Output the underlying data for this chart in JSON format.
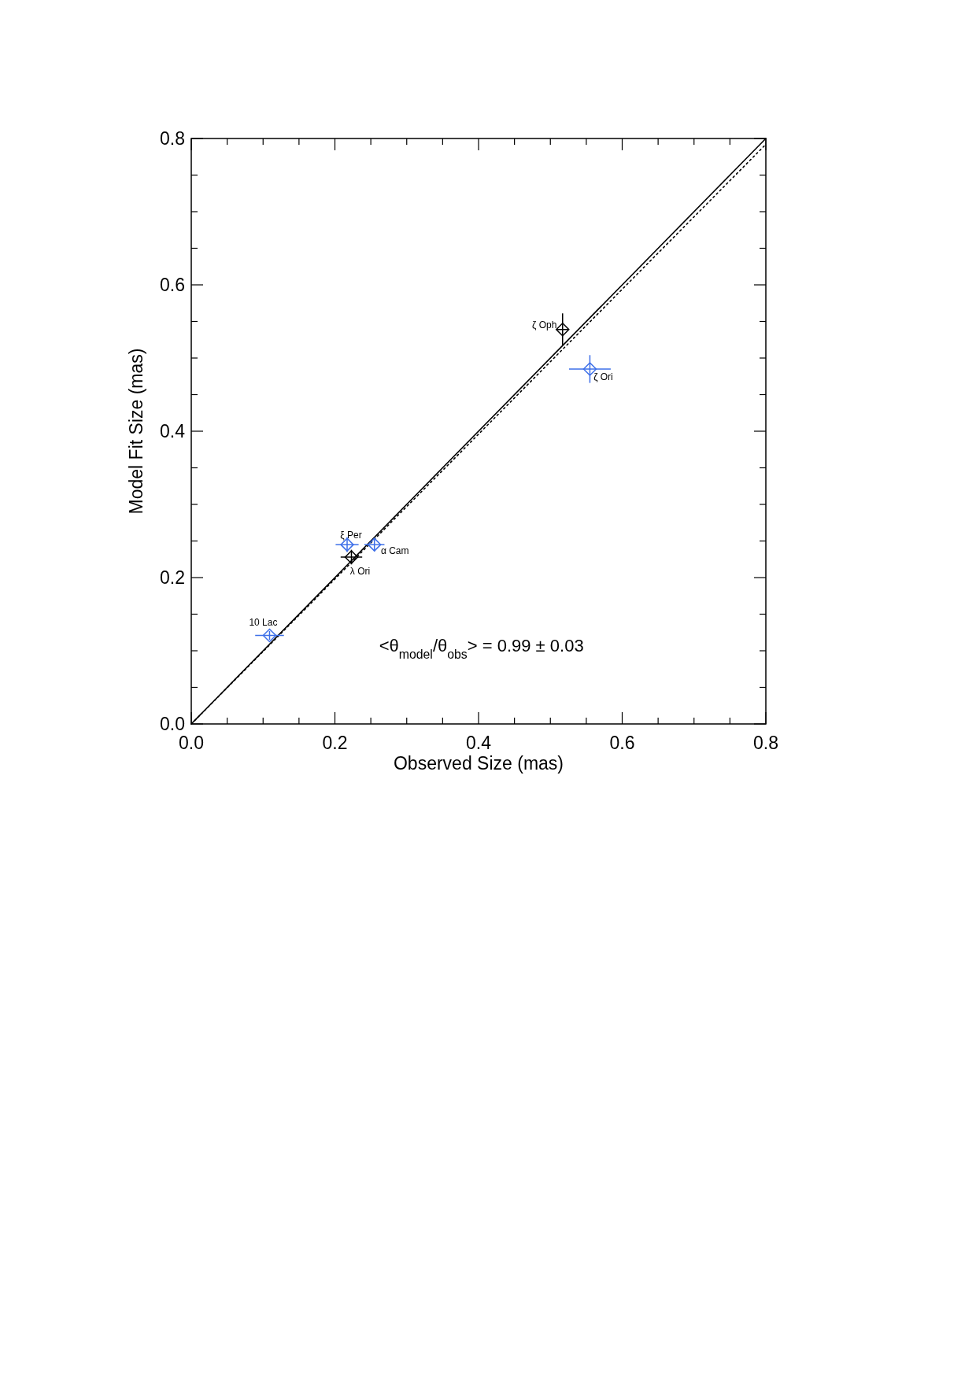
{
  "chart_data": {
    "type": "scatter",
    "xlabel": "Observed Size (mas)",
    "ylabel": "Model Fit Size (mas)",
    "xlim": [
      0,
      0.8
    ],
    "ylim": [
      0,
      0.8
    ],
    "xticks": [
      {
        "value": 0,
        "label": "0.0"
      },
      {
        "value": 0.05,
        "label": null
      },
      {
        "value": 0.1,
        "label": null
      },
      {
        "value": 0.15,
        "label": null
      },
      {
        "value": 0.2,
        "label": "0.2"
      },
      {
        "value": 0.25,
        "label": null
      },
      {
        "value": 0.3,
        "label": null
      },
      {
        "value": 0.35,
        "label": null
      },
      {
        "value": 0.4,
        "label": "0.4"
      },
      {
        "value": 0.45,
        "label": null
      },
      {
        "value": 0.5,
        "label": null
      },
      {
        "value": 0.55,
        "label": null
      },
      {
        "value": 0.6,
        "label": "0.6"
      },
      {
        "value": 0.65,
        "label": null
      },
      {
        "value": 0.7,
        "label": null
      },
      {
        "value": 0.75,
        "label": null
      },
      {
        "value": 0.8,
        "label": "0.8"
      }
    ],
    "yticks": [
      {
        "value": 0,
        "label": "0.0"
      },
      {
        "value": 0.05,
        "label": null
      },
      {
        "value": 0.1,
        "label": null
      },
      {
        "value": 0.15,
        "label": null
      },
      {
        "value": 0.2,
        "label": "0.2"
      },
      {
        "value": 0.25,
        "label": null
      },
      {
        "value": 0.3,
        "label": null
      },
      {
        "value": 0.35,
        "label": null
      },
      {
        "value": 0.4,
        "label": "0.4"
      },
      {
        "value": 0.45,
        "label": null
      },
      {
        "value": 0.5,
        "label": null
      },
      {
        "value": 0.55,
        "label": null
      },
      {
        "value": 0.6,
        "label": "0.6"
      },
      {
        "value": 0.65,
        "label": null
      },
      {
        "value": 0.7,
        "label": null
      },
      {
        "value": 0.75,
        "label": null
      },
      {
        "value": 0.8,
        "label": "0.8"
      }
    ],
    "grid": false,
    "series": [
      {
        "type": "line",
        "color": "#000000",
        "x": [
          0,
          0.8
        ],
        "values": [
          0,
          0.8
        ],
        "line_style": "solid",
        "marker": "none"
      },
      {
        "type": "line",
        "color": "#000000",
        "x": [
          0,
          0.8
        ],
        "values": [
          0,
          0.792
        ],
        "line_style": "dotted",
        "marker": "none"
      },
      {
        "marker": "diamond",
        "color": "#3d6fe8",
        "x": [
          0.109,
          0.217,
          0.255,
          0.555
        ],
        "values": [
          0.121,
          0.245,
          0.245,
          0.485
        ],
        "xerrors": [
          0.02,
          0.016,
          0.014,
          0.029
        ],
        "errors": [
          0.006,
          0.01,
          0.009,
          0.019
        ]
      },
      {
        "marker": "diamond",
        "color": "#000000",
        "x": [
          0.223,
          0.517
        ],
        "values": [
          0.228,
          0.539
        ],
        "xerrors": [
          0.015,
          0.008
        ],
        "errors": [
          0.01,
          0.022
        ]
      }
    ],
    "annotations": [
      {
        "text": "10 Lac",
        "x": 0.109,
        "y": 0.121
      },
      {
        "text": "ξ Per",
        "x": 0.217,
        "y": 0.245
      },
      {
        "text": "α Cam",
        "x": 0.255,
        "y": 0.245
      },
      {
        "text": "λ Ori",
        "x": 0.223,
        "y": 0.228
      },
      {
        "text": "ζ Oph",
        "x": 0.517,
        "y": 0.539
      },
      {
        "text": "ζ Ori",
        "x": 0.555,
        "y": 0.485
      },
      "<θ$_{model}$/θ$_{obs}$> = 0.99 ± 0.03"
    ]
  }
}
